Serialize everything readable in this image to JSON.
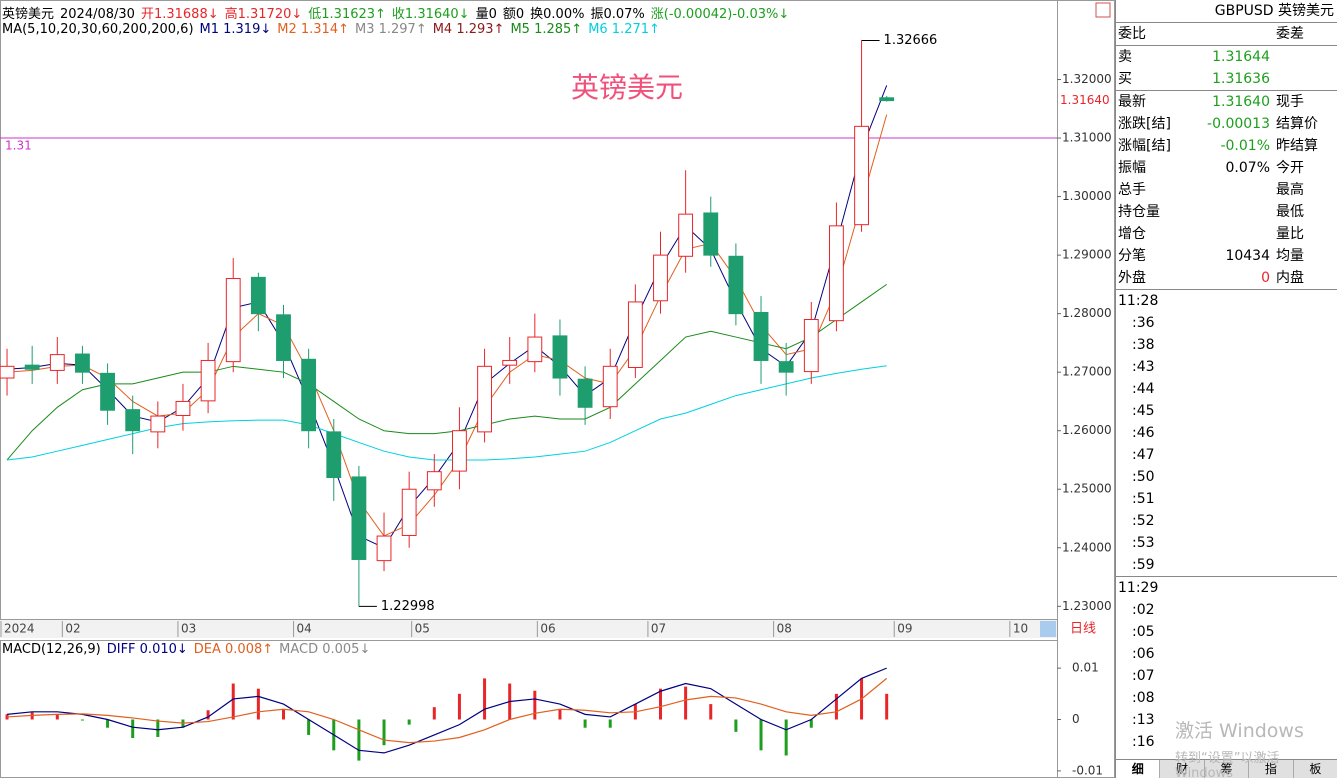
{
  "header": [
    {
      "text": "英镑美元",
      "color": "#000"
    },
    {
      "text": "2024/08/30",
      "color": "#000"
    },
    {
      "text": "开1.31688↓",
      "color": "#e8262a"
    },
    {
      "text": "高1.31720↓",
      "color": "#e8262a"
    },
    {
      "text": "低1.31623↑",
      "color": "#1e9e1e"
    },
    {
      "text": "收1.31640↓",
      "color": "#1e9e1e"
    },
    {
      "text": "量0",
      "color": "#000"
    },
    {
      "text": "额0",
      "color": "#000"
    },
    {
      "text": "换0.00%",
      "color": "#000"
    },
    {
      "text": "振0.07%",
      "color": "#000"
    },
    {
      "text": "涨(-0.00042)-0.03%↓",
      "color": "#1e9e1e"
    }
  ],
  "ma_legend": [
    {
      "text": "MA(5,10,20,30,60,200,200,6)",
      "color": "#000"
    },
    {
      "text": "M1 1.319↓",
      "color": "#000080"
    },
    {
      "text": "M2 1.314↑",
      "color": "#e06020"
    },
    {
      "text": "M3 1.297↑",
      "color": "#888888"
    },
    {
      "text": "M4 1.293↑",
      "color": "#8b1a1a"
    },
    {
      "text": "M5 1.285↑",
      "color": "#1a8a1a"
    },
    {
      "text": "M6 1.271↑",
      "color": "#00d0e0"
    }
  ],
  "chart_data": [
    {
      "type": "candlestick",
      "title": "英镑美元",
      "period": "日线",
      "open": [
        1.269,
        1.2712,
        1.2703,
        1.2731,
        1.2698,
        1.2636,
        1.2598,
        1.2626,
        1.2651,
        1.2718,
        1.2862,
        1.2798,
        1.2722,
        1.2598,
        1.2521,
        1.2378,
        1.2421,
        1.2499,
        1.2531,
        1.2598,
        1.2712,
        1.2718,
        1.2762,
        1.2688,
        1.2641,
        1.2708,
        1.2822,
        1.2898,
        1.2972,
        1.2898,
        1.2802,
        1.2718,
        1.2701,
        1.2788,
        1.2952,
        1.31688
      ],
      "high": [
        1.274,
        1.2745,
        1.276,
        1.2745,
        1.2715,
        1.266,
        1.265,
        1.268,
        1.275,
        1.2895,
        1.287,
        1.2815,
        1.274,
        1.262,
        1.254,
        1.246,
        1.253,
        1.256,
        1.264,
        1.274,
        1.276,
        1.28,
        1.279,
        1.271,
        1.274,
        1.285,
        1.294,
        1.3045,
        1.3,
        1.292,
        1.283,
        1.275,
        1.282,
        1.299,
        1.32666,
        1.3172
      ],
      "low": [
        1.266,
        1.268,
        1.268,
        1.268,
        1.261,
        1.256,
        1.257,
        1.26,
        1.263,
        1.27,
        1.277,
        1.269,
        1.257,
        1.248,
        1.22998,
        1.236,
        1.24,
        1.247,
        1.25,
        1.258,
        1.268,
        1.27,
        1.266,
        1.261,
        1.262,
        1.269,
        1.28,
        1.287,
        1.288,
        1.278,
        1.268,
        1.266,
        1.268,
        1.277,
        1.294,
        1.31623
      ],
      "close": [
        1.271,
        1.2705,
        1.273,
        1.27,
        1.2635,
        1.26,
        1.2625,
        1.265,
        1.272,
        1.286,
        1.28,
        1.272,
        1.26,
        1.252,
        1.238,
        1.242,
        1.25,
        1.253,
        1.26,
        1.271,
        1.272,
        1.276,
        1.269,
        1.264,
        1.271,
        1.282,
        1.29,
        1.297,
        1.29,
        1.28,
        1.272,
        1.27,
        1.279,
        1.295,
        1.312,
        1.3164
      ],
      "up_color": "#e8262a",
      "down_color": "#1e9e6e",
      "lines": [
        {
          "color": "#000080",
          "values": [
            1.2705,
            1.2708,
            1.2715,
            1.2712,
            1.267,
            1.2625,
            1.2615,
            1.264,
            1.269,
            1.281,
            1.282,
            1.275,
            1.265,
            1.254,
            1.242,
            1.24,
            1.247,
            1.252,
            1.258,
            1.268,
            1.2715,
            1.2745,
            1.271,
            1.266,
            1.269,
            1.279,
            1.288,
            1.295,
            1.291,
            1.282,
            1.274,
            1.271,
            1.277,
            1.292,
            1.308,
            1.319
          ]
        },
        {
          "color": "#e06020",
          "values": [
            1.27,
            1.2703,
            1.271,
            1.2712,
            1.269,
            1.265,
            1.2625,
            1.263,
            1.267,
            1.276,
            1.28,
            1.278,
            1.27,
            1.26,
            1.248,
            1.242,
            1.244,
            1.249,
            1.255,
            1.264,
            1.27,
            1.273,
            1.272,
            1.269,
            1.268,
            1.274,
            1.283,
            1.291,
            1.292,
            1.286,
            1.278,
            1.273,
            1.274,
            1.284,
            1.299,
            1.314
          ]
        },
        {
          "color": "#1a8a1a",
          "values": [
            1.255,
            1.26,
            1.264,
            1.267,
            1.268,
            1.268,
            1.269,
            1.27,
            1.27,
            1.271,
            1.2705,
            1.27,
            1.268,
            1.265,
            1.262,
            1.26,
            1.2595,
            1.2595,
            1.26,
            1.261,
            1.262,
            1.2625,
            1.262,
            1.262,
            1.264,
            1.268,
            1.272,
            1.276,
            1.277,
            1.276,
            1.275,
            1.274,
            1.276,
            1.279,
            1.282,
            1.285
          ]
        },
        {
          "color": "#00d0e0",
          "values": [
            1.255,
            1.2555,
            1.2565,
            1.2575,
            1.2585,
            1.2595,
            1.2605,
            1.2612,
            1.2615,
            1.2617,
            1.2618,
            1.2618,
            1.261,
            1.2595,
            1.258,
            1.2565,
            1.2555,
            1.255,
            1.255,
            1.255,
            1.2552,
            1.2555,
            1.256,
            1.2565,
            1.258,
            1.26,
            1.262,
            1.263,
            1.2645,
            1.266,
            1.267,
            1.268,
            1.269,
            1.2698,
            1.2705,
            1.2711
          ]
        }
      ],
      "ylim": [
        1.228,
        1.33
      ],
      "yticks": [
        {
          "value": 1.32,
          "label": "1.32000"
        },
        {
          "value": 1.31,
          "label": "1.31000"
        },
        {
          "value": 1.3,
          "label": "1.30000"
        },
        {
          "value": 1.29,
          "label": "1.29000"
        },
        {
          "value": 1.28,
          "label": "1.28000"
        },
        {
          "value": 1.27,
          "label": "1.27000"
        },
        {
          "value": 1.26,
          "label": "1.26000"
        },
        {
          "value": 1.25,
          "label": "1.25000"
        },
        {
          "value": 1.24,
          "label": "1.24000"
        },
        {
          "value": 1.23,
          "label": "1.23000"
        }
      ],
      "xlim": [
        -0.28,
        41.1
      ],
      "xticks": [
        {
          "value": -0.28,
          "label": "2024"
        },
        {
          "value": 2.2,
          "label": "02"
        },
        {
          "value": 6.8,
          "label": "03"
        },
        {
          "value": 11.4,
          "label": "04"
        },
        {
          "value": 16.1,
          "label": "05"
        },
        {
          "value": 21.1,
          "label": "06"
        },
        {
          "value": 25.5,
          "label": "07"
        },
        {
          "value": 30.5,
          "label": "08"
        },
        {
          "value": 35.3,
          "label": "09"
        },
        {
          "value": 39.9,
          "label": "10"
        }
      ],
      "level": 1.31,
      "level_color": "#cc33cc",
      "last_price": {
        "value": 1.3164,
        "label": "1.31640"
      }
    },
    {
      "type": "macd",
      "legend": [
        {
          "text": "MACD(12,26,9)",
          "color": "#000"
        },
        {
          "text": "DIFF 0.010↓",
          "color": "#000080"
        },
        {
          "text": "DEA 0.008↑",
          "color": "#e06020"
        },
        {
          "text": "MACD 0.005↓",
          "color": "#888888"
        }
      ],
      "hist": [
        0.001,
        0.0014,
        0.001,
        -0.0002,
        -0.0016,
        -0.0036,
        -0.0034,
        -0.0016,
        0.0018,
        0.007,
        0.006,
        0.002,
        -0.003,
        -0.006,
        -0.008,
        -0.005,
        -0.001,
        0.0024,
        0.005,
        0.008,
        0.007,
        0.0056,
        0.002,
        -0.0016,
        -0.0016,
        0.003,
        0.006,
        0.0064,
        0.003,
        -0.0024,
        -0.006,
        -0.007,
        -0.0016,
        0.005,
        0.008,
        0.005
      ],
      "diff": [
        0.001,
        0.0015,
        0.0015,
        0.001,
        0,
        -0.0015,
        -0.002,
        -0.0015,
        0.0005,
        0.004,
        0.0045,
        0.003,
        0,
        -0.003,
        -0.006,
        -0.0065,
        -0.005,
        -0.003,
        -0.001,
        0.002,
        0.0035,
        0.004,
        0.003,
        0.001,
        0.0005,
        0.003,
        0.0055,
        0.007,
        0.006,
        0.003,
        0,
        -0.002,
        0,
        0.004,
        0.008,
        0.01
      ],
      "dea": [
        0.0005,
        0.0008,
        0.001,
        0.0011,
        0.0008,
        0.0003,
        -0.0003,
        -0.0007,
        -0.0004,
        0.0005,
        0.0015,
        0.002,
        0.0015,
        0,
        -0.002,
        -0.004,
        -0.0045,
        -0.0042,
        -0.0035,
        -0.002,
        0,
        0.0012,
        0.002,
        0.0018,
        0.0013,
        0.0015,
        0.0025,
        0.0038,
        0.0045,
        0.0042,
        0.003,
        0.0015,
        0.0008,
        0.0015,
        0.004,
        0.008
      ],
      "hist_up_color": "#e8262a",
      "hist_down_color": "#1e9e1e",
      "diff_color": "#000080",
      "dea_color": "#e06020",
      "ylim": [
        -0.0108,
        0.0145
      ],
      "yticks": [
        0.01,
        0,
        -0.01
      ]
    }
  ],
  "quote": {
    "title": "GBPUSD 英镑美元",
    "rows": [
      {
        "label": "委比",
        "label2": "委差"
      },
      {
        "label": "卖",
        "value": "1.31644",
        "color": "#1e9e1e"
      },
      {
        "label": "买",
        "value": "1.31636",
        "color": "#1e9e1e"
      },
      {
        "label": "最新",
        "value": "1.31640",
        "color": "#1e9e1e",
        "label2": "现手"
      },
      {
        "label": "涨跌[结]",
        "value": "-0.00013",
        "color": "#1e9e1e",
        "label2": "结算价"
      },
      {
        "label": "涨幅[结]",
        "value": "-0.01%",
        "color": "#1e9e1e",
        "label2": "昨结算"
      },
      {
        "label": "振幅",
        "value": "0.07%",
        "color": "#000",
        "label2": "今开"
      },
      {
        "label": "总手",
        "label2": "最高"
      },
      {
        "label": "持仓量",
        "label2": "最低"
      },
      {
        "label": "增仓",
        "label2": "量比"
      },
      {
        "label": "分笔",
        "value": "10434",
        "color": "#000",
        "label2": "均量"
      },
      {
        "label": "外盘",
        "value": "0",
        "color": "#e8262a",
        "label2": "内盘"
      }
    ],
    "times": [
      "11:28",
      ":36",
      ":38",
      ":43",
      ":44",
      ":45",
      ":46",
      ":47",
      ":50",
      ":51",
      ":52",
      ":53",
      ":59",
      "11:29",
      ":02",
      ":05",
      ":06",
      ":07",
      ":08",
      ":13",
      ":16"
    ],
    "tabs": [
      "细",
      "财",
      "筹",
      "指",
      "板"
    ]
  },
  "watermark": {
    "title": "激活 Windows",
    "subtitle": "转到“设置”以激活 Windows"
  }
}
